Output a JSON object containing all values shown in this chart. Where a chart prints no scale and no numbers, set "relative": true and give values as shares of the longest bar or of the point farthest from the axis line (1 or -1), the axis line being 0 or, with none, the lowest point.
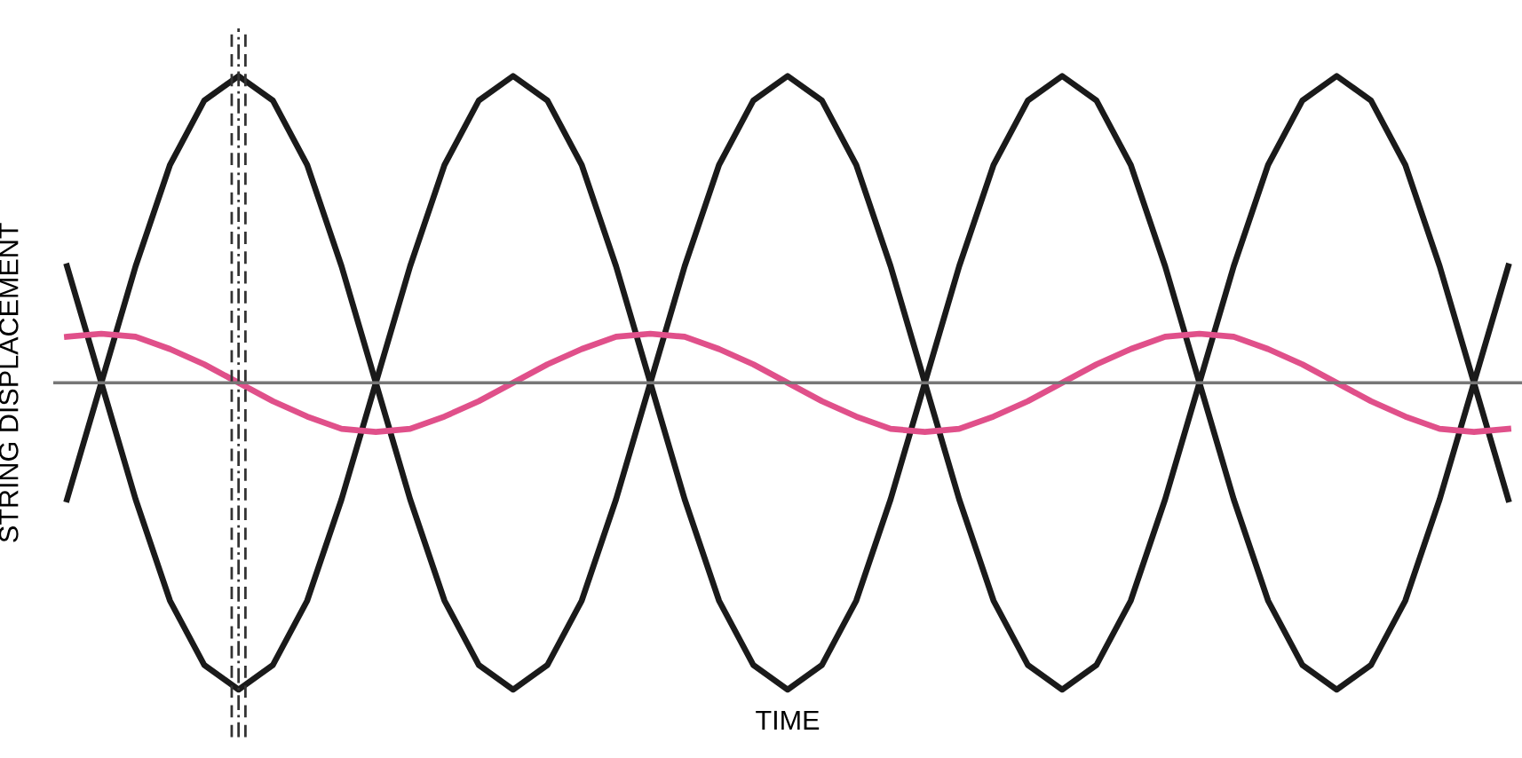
{
  "chart_data": {
    "type": "line",
    "relative": true,
    "xlabel": "TIME",
    "ylabel": "STRING DISPLACEMENT",
    "categories": [
      null,
      null,
      null,
      null,
      null,
      null,
      null,
      null,
      null,
      null,
      null,
      null,
      null,
      null,
      null,
      null,
      null,
      null,
      null,
      null,
      null,
      null,
      null,
      null,
      null,
      null,
      null,
      null,
      null,
      null,
      null,
      null,
      null,
      null,
      null,
      null,
      null,
      null,
      null,
      null,
      null,
      null,
      null
    ],
    "series": [
      {
        "color": "#1a1a1a",
        "values": [
          -0.38,
          0,
          0.38,
          0.71,
          0.92,
          1,
          0.92,
          0.71,
          0.38,
          0,
          -0.38,
          -0.71,
          -0.92,
          -1,
          -0.92,
          -0.71,
          -0.38,
          0,
          0.38,
          0.71,
          0.92,
          1,
          0.92,
          0.71,
          0.38,
          0,
          -0.38,
          -0.71,
          -0.92,
          -1,
          -0.92,
          -0.71,
          -0.38,
          0,
          0.38,
          0.71,
          0.92,
          1,
          0.92,
          0.71,
          0.38,
          0,
          -0.38
        ]
      },
      {
        "color": "#1a1a1a",
        "values": [
          0.38,
          0,
          -0.38,
          -0.71,
          -0.92,
          -1,
          -0.92,
          -0.71,
          -0.38,
          0,
          0.38,
          0.71,
          0.92,
          1,
          0.92,
          0.71,
          0.38,
          0,
          -0.38,
          -0.71,
          -0.92,
          -1,
          -0.92,
          -0.71,
          -0.38,
          0,
          0.38,
          0.71,
          0.92,
          1,
          0.92,
          0.71,
          0.38,
          0,
          -0.38,
          -0.71,
          -0.92,
          -1,
          -0.92,
          -0.71,
          -0.38,
          0,
          0.38
        ]
      },
      {
        "color": "#e0508a",
        "values": [
          0.15,
          0.16,
          0.15,
          0.11,
          0.06,
          0,
          -0.06,
          -0.11,
          -0.15,
          -0.16,
          -0.15,
          -0.11,
          -0.06,
          0,
          0.06,
          0.11,
          0.15,
          0.16,
          0.15,
          0.11,
          0.06,
          0,
          -0.06,
          -0.11,
          -0.15,
          -0.16,
          -0.15,
          -0.11,
          -0.06,
          0,
          0.06,
          0.11,
          0.15,
          0.16,
          0.15,
          0.11,
          0.06,
          0,
          -0.06,
          -0.11,
          -0.15,
          -0.16,
          -0.15
        ]
      }
    ]
  }
}
